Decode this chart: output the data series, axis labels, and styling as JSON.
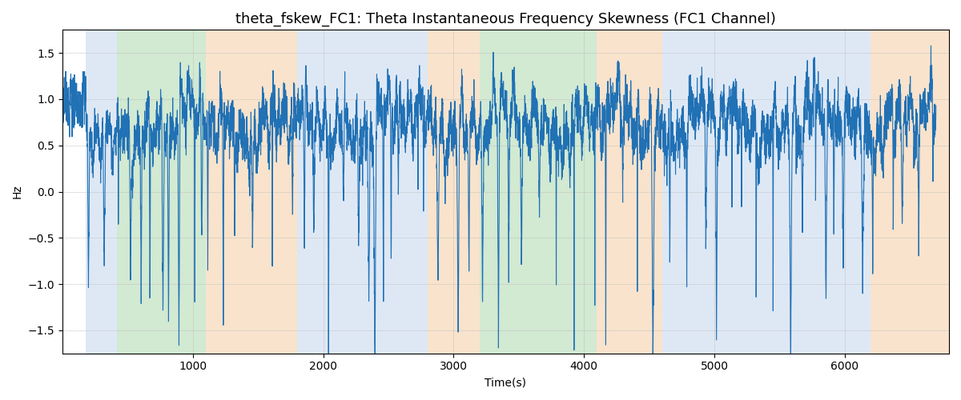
{
  "title": "theta_fskew_FC1: Theta Instantaneous Frequency Skewness (FC1 Channel)",
  "xlabel": "Time(s)",
  "ylabel": "Hz",
  "ylim": [
    -1.75,
    1.75
  ],
  "xlim": [
    0,
    6800
  ],
  "line_color": "#2171b5",
  "line_width": 0.8,
  "bg_regions": [
    {
      "xmin": 180,
      "xmax": 420,
      "color": "#aec6e8",
      "alpha": 0.4
    },
    {
      "xmin": 420,
      "xmax": 1100,
      "color": "#90c990",
      "alpha": 0.4
    },
    {
      "xmin": 1100,
      "xmax": 1800,
      "color": "#f5c99a",
      "alpha": 0.5
    },
    {
      "xmin": 1800,
      "xmax": 2800,
      "color": "#aec6e8",
      "alpha": 0.4
    },
    {
      "xmin": 2800,
      "xmax": 3200,
      "color": "#f5c99a",
      "alpha": 0.5
    },
    {
      "xmin": 3200,
      "xmax": 4100,
      "color": "#90c990",
      "alpha": 0.4
    },
    {
      "xmin": 4100,
      "xmax": 4600,
      "color": "#f5c99a",
      "alpha": 0.5
    },
    {
      "xmin": 4600,
      "xmax": 6200,
      "color": "#aec6e8",
      "alpha": 0.4
    },
    {
      "xmin": 6200,
      "xmax": 6800,
      "color": "#f5c99a",
      "alpha": 0.5
    }
  ],
  "yticks": [
    -1.5,
    -1.0,
    -0.5,
    0.0,
    0.5,
    1.0,
    1.5
  ],
  "grid_color": "#bbbbbb",
  "grid_alpha": 0.6,
  "title_fontsize": 13,
  "figsize": [
    12.0,
    5.0
  ],
  "dpi": 100
}
